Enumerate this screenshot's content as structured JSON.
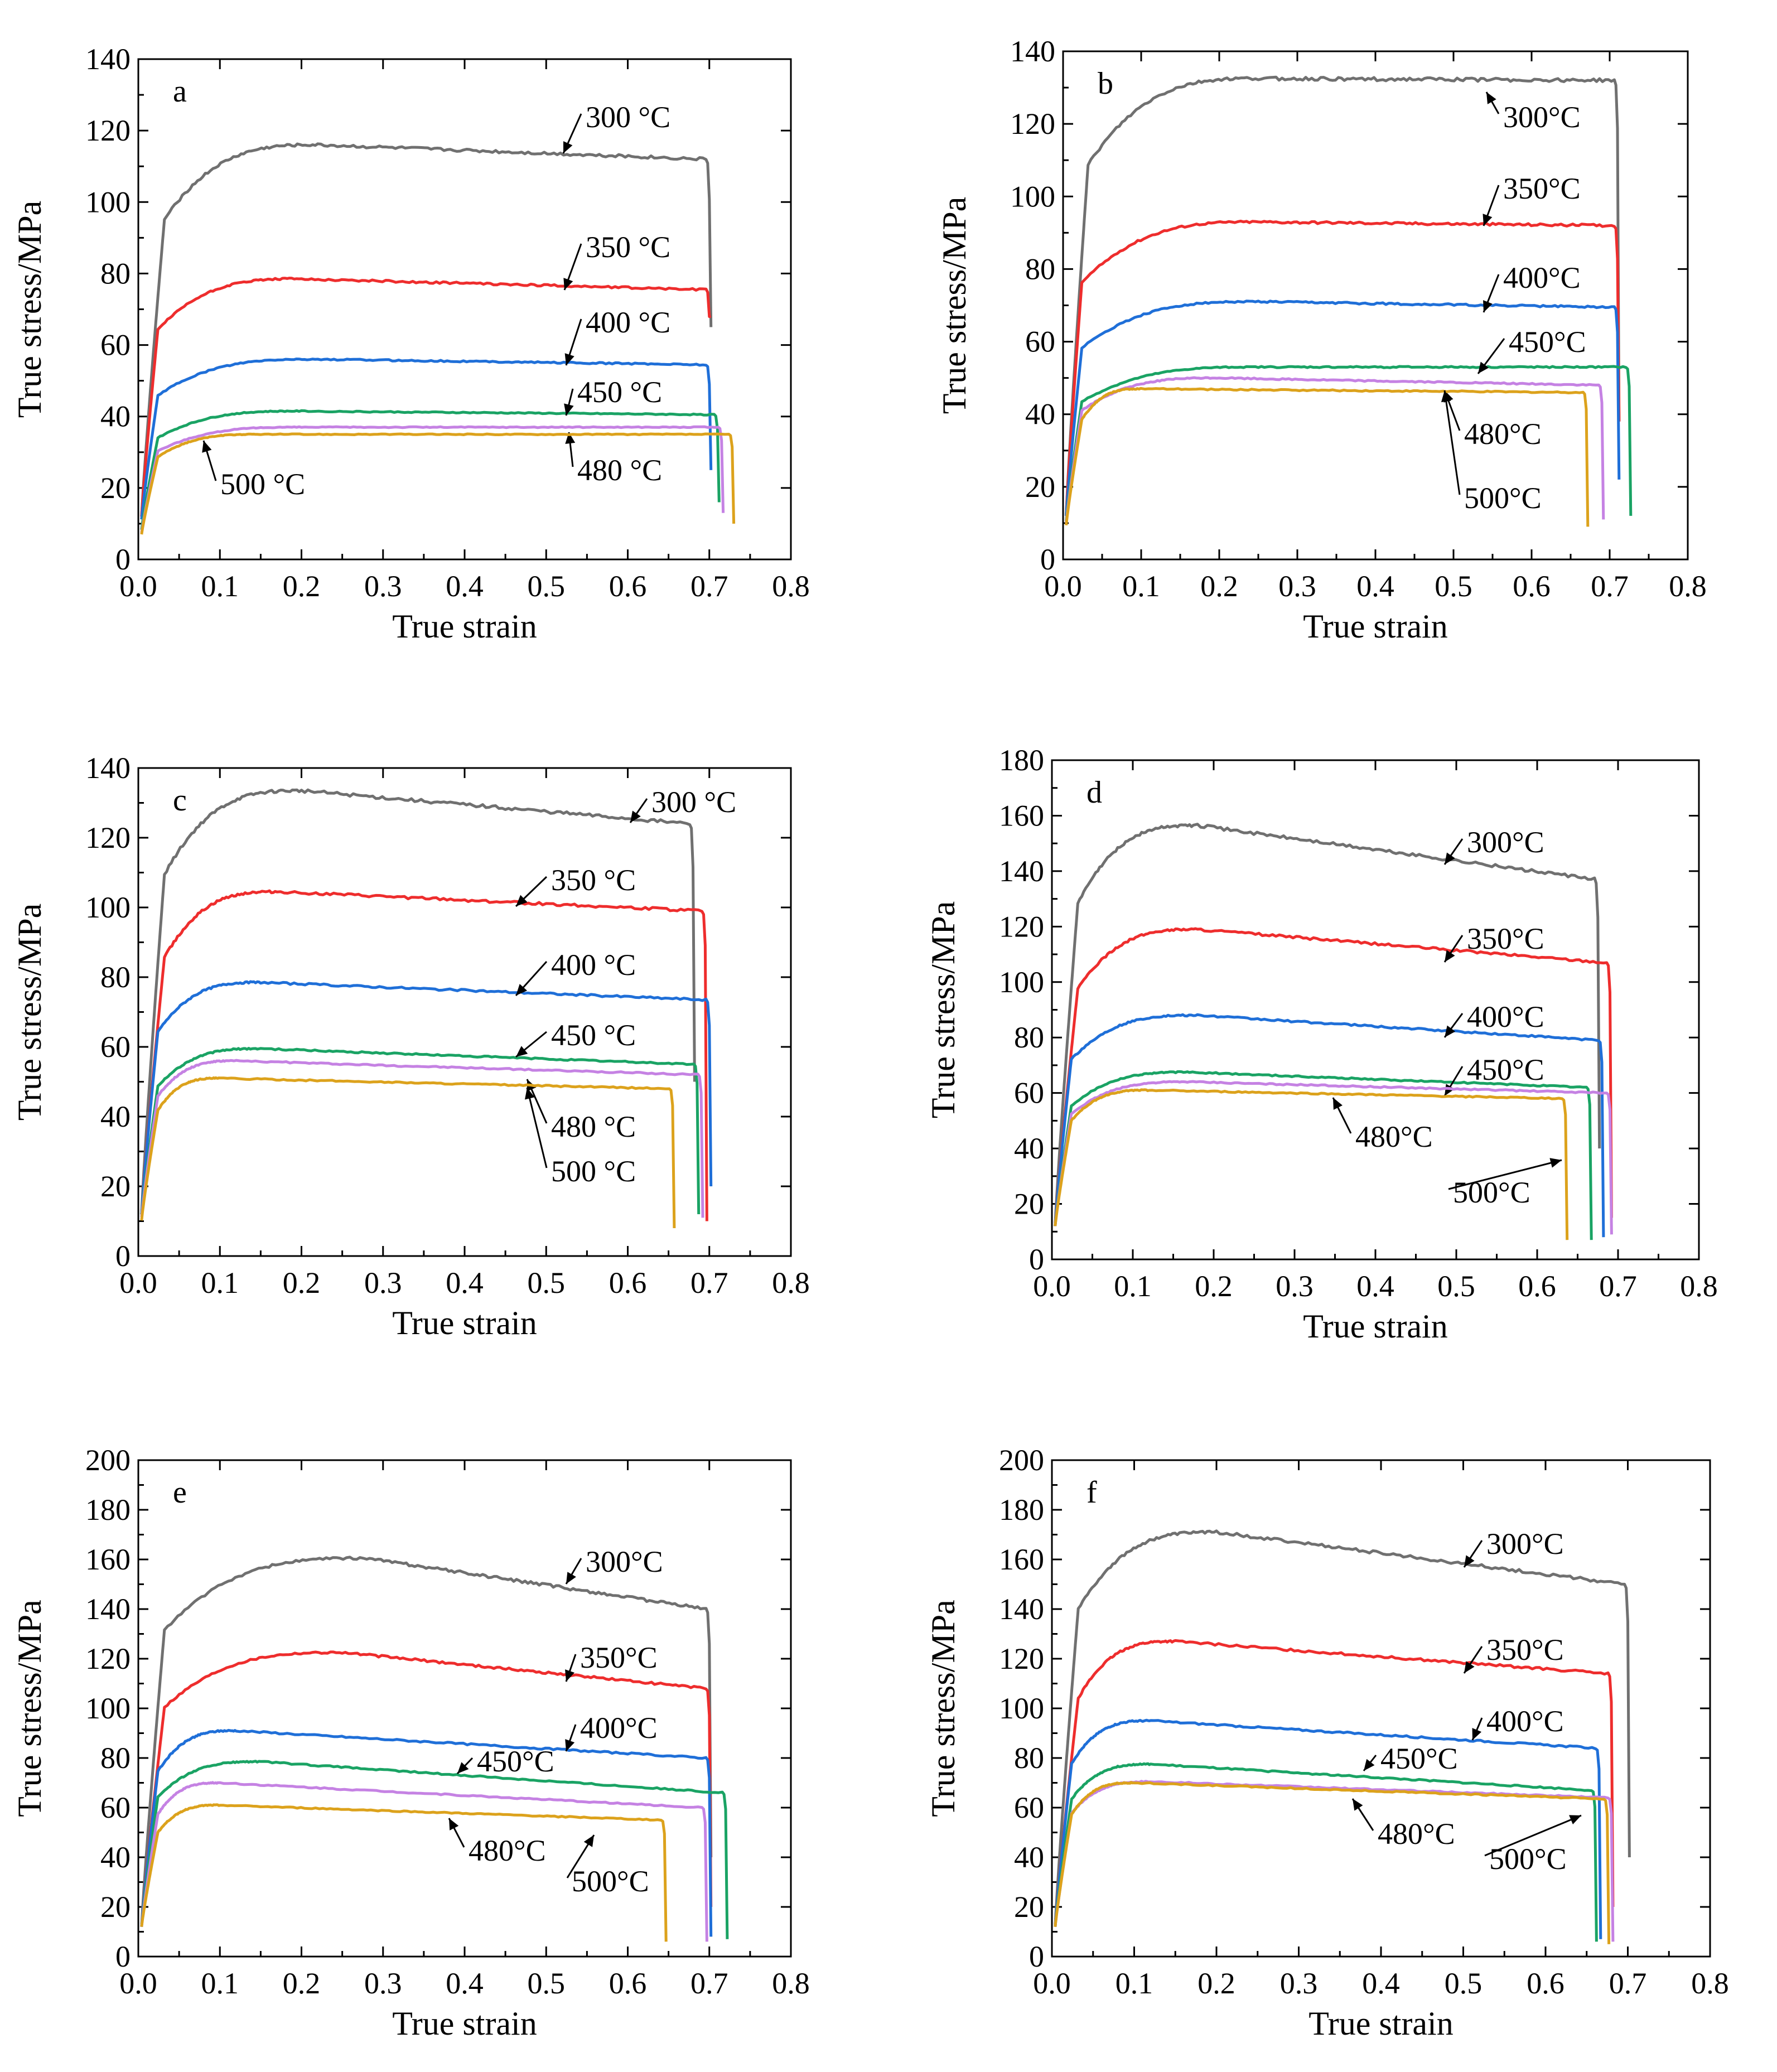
{
  "figure": {
    "x_title": "True strain",
    "y_title": "True stress/MPa"
  },
  "colors": {
    "300": "#707070",
    "350": "#ee2d2d",
    "400": "#1f6fd8",
    "450": "#1aa364",
    "480": "#c582e3",
    "500": "#dca21c",
    "axis": "#000000"
  },
  "chart_data": [
    {
      "type": "line",
      "panel": "a",
      "xlabel": "True strain",
      "ylabel": "True stress/MPa",
      "xlim": [
        0,
        0.8
      ],
      "ylim": [
        0,
        140
      ],
      "xticks": [
        "0.0",
        "0.1",
        "0.2",
        "0.3",
        "0.4",
        "0.5",
        "0.6",
        "0.7",
        "0.8"
      ],
      "yticks": [
        "0",
        "20",
        "40",
        "60",
        "80",
        "100",
        "120",
        "140"
      ],
      "series": [
        {
          "name": "300 °C",
          "color": "300",
          "label": "300 °C",
          "peak": 116,
          "peak_x": 0.22,
          "end_y": 112,
          "end_x": 0.7,
          "drop_to": 65
        },
        {
          "name": "350 °C",
          "color": "350",
          "label": "350 °C",
          "peak": 78.5,
          "peak_x": 0.2,
          "end_y": 75.5,
          "end_x": 0.7,
          "drop_to": 68
        },
        {
          "name": "400 °C",
          "color": "400",
          "label": "400 °C",
          "peak": 56,
          "peak_x": 0.22,
          "end_y": 54.5,
          "end_x": 0.7,
          "drop_to": 25
        },
        {
          "name": "450 °C",
          "color": "450",
          "label": "450 °C",
          "peak": 41.5,
          "peak_x": 0.2,
          "end_y": 40.5,
          "end_x": 0.71,
          "drop_to": 16
        },
        {
          "name": "480 °C",
          "color": "480",
          "label": "480 °C",
          "peak": 37,
          "peak_x": 0.2,
          "end_y": 37,
          "end_x": 0.715,
          "drop_to": 13
        },
        {
          "name": "500 °C",
          "color": "500",
          "label": "500 °C",
          "peak": 35,
          "peak_x": 0.15,
          "end_y": 35,
          "end_x": 0.728,
          "drop_to": 10
        }
      ]
    },
    {
      "type": "line",
      "panel": "b",
      "xlabel": "True strain",
      "ylabel": "True stress/MPa",
      "xlim": [
        0,
        0.8
      ],
      "ylim": [
        0,
        140
      ],
      "xticks": [
        "0.0",
        "0.1",
        "0.2",
        "0.3",
        "0.4",
        "0.5",
        "0.6",
        "0.7",
        "0.8"
      ],
      "yticks": [
        "0",
        "20",
        "40",
        "60",
        "80",
        "100",
        "120",
        "140"
      ],
      "series": [
        {
          "name": "300°C",
          "color": "300",
          "label": "300°C",
          "peak": 132.5,
          "peak_x": 0.25,
          "end_y": 132,
          "end_x": 0.71,
          "drop_to": 38
        },
        {
          "name": "350°C",
          "color": "350",
          "label": "350°C",
          "peak": 93,
          "peak_x": 0.25,
          "end_y": 92,
          "end_x": 0.71,
          "drop_to": 38
        },
        {
          "name": "400°C",
          "color": "400",
          "label": "400°C",
          "peak": 71,
          "peak_x": 0.25,
          "end_y": 69.5,
          "end_x": 0.71,
          "drop_to": 22
        },
        {
          "name": "450°C",
          "color": "450",
          "label": "450°C",
          "peak": 53,
          "peak_x": 0.25,
          "end_y": 53,
          "end_x": 0.725,
          "drop_to": 12
        },
        {
          "name": "480°C",
          "color": "480",
          "label": "480°C",
          "peak": 50,
          "peak_x": 0.2,
          "end_y": 48,
          "end_x": 0.69,
          "drop_to": 11
        },
        {
          "name": "500°C",
          "color": "500",
          "label": "500°C",
          "peak": 47,
          "peak_x": 0.1,
          "end_y": 46,
          "end_x": 0.67,
          "drop_to": 9
        }
      ]
    },
    {
      "type": "line",
      "panel": "c",
      "xlabel": "True strain",
      "ylabel": "True stress/MPa",
      "xlim": [
        0,
        0.8
      ],
      "ylim": [
        0,
        140
      ],
      "xticks": [
        "0.0",
        "0.1",
        "0.2",
        "0.3",
        "0.4",
        "0.5",
        "0.6",
        "0.7",
        "0.8"
      ],
      "yticks": [
        "0",
        "20",
        "40",
        "60",
        "80",
        "100",
        "120",
        "140"
      ],
      "series": [
        {
          "name": "300 °C",
          "color": "300",
          "label": "300 °C",
          "peak": 133.5,
          "peak_x": 0.2,
          "end_y": 124,
          "end_x": 0.68,
          "drop_to": 50
        },
        {
          "name": "350 °C",
          "color": "350",
          "label": "350 °C",
          "peak": 104.5,
          "peak_x": 0.17,
          "end_y": 99,
          "end_x": 0.695,
          "drop_to": 10
        },
        {
          "name": "400 °C",
          "color": "400",
          "label": "400 °C",
          "peak": 78.5,
          "peak_x": 0.15,
          "end_y": 73.5,
          "end_x": 0.7,
          "drop_to": 20
        },
        {
          "name": "450 °C",
          "color": "450",
          "label": "450 °C",
          "peak": 59.5,
          "peak_x": 0.15,
          "end_y": 55,
          "end_x": 0.685,
          "drop_to": 12
        },
        {
          "name": "480 °C",
          "color": "480",
          "label": "480 °C",
          "peak": 56,
          "peak_x": 0.12,
          "end_y": 52,
          "end_x": 0.69,
          "drop_to": 11
        },
        {
          "name": "500 °C",
          "color": "500",
          "label": "500 °C",
          "peak": 51,
          "peak_x": 0.1,
          "end_y": 48,
          "end_x": 0.655,
          "drop_to": 8
        }
      ]
    },
    {
      "type": "line",
      "panel": "d",
      "xlabel": "True strain",
      "ylabel": "True stress/MPa",
      "xlim": [
        0,
        0.8
      ],
      "ylim": [
        0,
        180
      ],
      "xticks": [
        "0.0",
        "0.1",
        "0.2",
        "0.3",
        "0.4",
        "0.5",
        "0.6",
        "0.7",
        "0.8"
      ],
      "yticks": [
        "0",
        "20",
        "40",
        "60",
        "80",
        "100",
        "120",
        "140",
        "160",
        "180"
      ],
      "series": [
        {
          "name": "300°C",
          "color": "300",
          "label": "300°C",
          "peak": 156.5,
          "peak_x": 0.18,
          "end_y": 137,
          "end_x": 0.675,
          "drop_to": 40
        },
        {
          "name": "350°C",
          "color": "350",
          "label": "350°C",
          "peak": 119,
          "peak_x": 0.18,
          "end_y": 107,
          "end_x": 0.69,
          "drop_to": 15
        },
        {
          "name": "400°C",
          "color": "400",
          "label": "400°C",
          "peak": 88,
          "peak_x": 0.18,
          "end_y": 79,
          "end_x": 0.68,
          "drop_to": 8
        },
        {
          "name": "450°C",
          "color": "450",
          "label": "450°C",
          "peak": 67.5,
          "peak_x": 0.17,
          "end_y": 62,
          "end_x": 0.665,
          "drop_to": 7
        },
        {
          "name": "480°C",
          "color": "480",
          "label": "480°C",
          "peak": 64,
          "peak_x": 0.17,
          "end_y": 60,
          "end_x": 0.69,
          "drop_to": 9
        },
        {
          "name": "500°C",
          "color": "500",
          "label": "500°C",
          "peak": 61,
          "peak_x": 0.12,
          "end_y": 58,
          "end_x": 0.635,
          "drop_to": 7
        }
      ]
    },
    {
      "type": "line",
      "panel": "e",
      "xlabel": "True strain",
      "ylabel": "True stress/MPa",
      "xlim": [
        0,
        0.8
      ],
      "ylim": [
        0,
        200
      ],
      "xticks": [
        "0.0",
        "0.1",
        "0.2",
        "0.3",
        "0.4",
        "0.5",
        "0.6",
        "0.7",
        "0.8"
      ],
      "yticks": [
        "0",
        "20",
        "40",
        "60",
        "80",
        "100",
        "120",
        "140",
        "160",
        "180",
        "200"
      ],
      "series": [
        {
          "name": "300°C",
          "color": "300",
          "label": "300°C",
          "peak": 160.5,
          "peak_x": 0.28,
          "end_y": 140,
          "end_x": 0.7,
          "drop_to": 40
        },
        {
          "name": "350°C",
          "color": "350",
          "label": "350°C",
          "peak": 122.5,
          "peak_x": 0.25,
          "end_y": 108,
          "end_x": 0.7,
          "drop_to": 20
        },
        {
          "name": "400°C",
          "color": "400",
          "label": "400°C",
          "peak": 91,
          "peak_x": 0.12,
          "end_y": 80,
          "end_x": 0.7,
          "drop_to": 8
        },
        {
          "name": "450°C",
          "color": "450",
          "label": "450°C",
          "peak": 78.5,
          "peak_x": 0.15,
          "end_y": 66,
          "end_x": 0.72,
          "drop_to": 7
        },
        {
          "name": "480°C",
          "color": "480",
          "label": "480°C",
          "peak": 70,
          "peak_x": 0.1,
          "end_y": 60,
          "end_x": 0.695,
          "drop_to": 6
        },
        {
          "name": "500°C",
          "color": "500",
          "label": "500°C",
          "peak": 61,
          "peak_x": 0.1,
          "end_y": 55,
          "end_x": 0.645,
          "drop_to": 6
        }
      ]
    },
    {
      "type": "line",
      "panel": "f",
      "xlabel": "True strain",
      "ylabel": "True stress/MPa",
      "xlim": [
        0,
        0.8
      ],
      "ylim": [
        0,
        200
      ],
      "xticks": [
        "0.0",
        "0.1",
        "0.2",
        "0.3",
        "0.4",
        "0.5",
        "0.6",
        "0.7",
        "0.8"
      ],
      "yticks": [
        "0",
        "20",
        "40",
        "60",
        "80",
        "100",
        "120",
        "140",
        "160",
        "180",
        "200"
      ],
      "series": [
        {
          "name": "300°C",
          "color": "300",
          "label": "300°C",
          "peak": 171,
          "peak_x": 0.2,
          "end_y": 150,
          "end_x": 0.7,
          "drop_to": 40
        },
        {
          "name": "350°C",
          "color": "350",
          "label": "350°C",
          "peak": 127,
          "peak_x": 0.15,
          "end_y": 114,
          "end_x": 0.68,
          "drop_to": 20
        },
        {
          "name": "400°C",
          "color": "400",
          "label": "400°C",
          "peak": 95,
          "peak_x": 0.12,
          "end_y": 84,
          "end_x": 0.665,
          "drop_to": 7
        },
        {
          "name": "450°C",
          "color": "450",
          "label": "450°C",
          "peak": 77.5,
          "peak_x": 0.12,
          "end_y": 67,
          "end_x": 0.66,
          "drop_to": 6
        },
        {
          "name": "480°C",
          "color": "480",
          "label": "480°C",
          "peak": 70.5,
          "peak_x": 0.12,
          "end_y": 64,
          "end_x": 0.68,
          "drop_to": 6
        },
        {
          "name": "500°C",
          "color": "500",
          "label": "500°C",
          "peak": 70,
          "peak_x": 0.1,
          "end_y": 63.5,
          "end_x": 0.675,
          "drop_to": 5
        }
      ]
    }
  ]
}
